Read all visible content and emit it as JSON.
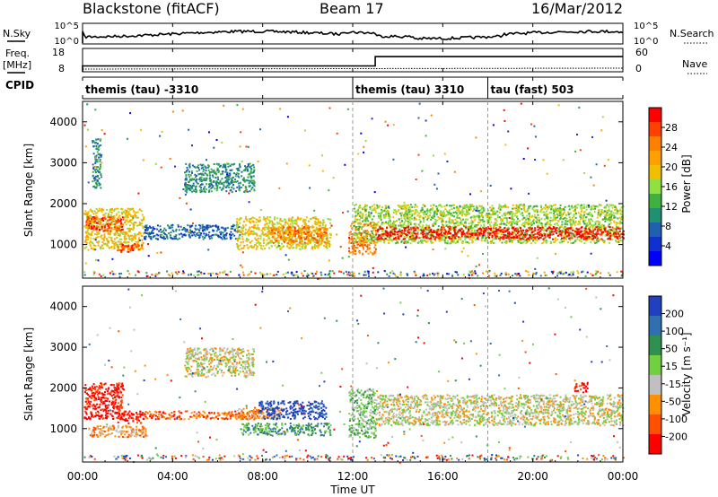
{
  "header": {
    "station": "Blackstone (fitACF)",
    "beam": "Beam 17",
    "date": "16/Mar/2012"
  },
  "side_labels": {
    "nsky": "N.Sky",
    "freq": "Freq.",
    "freq_unit": "[MHz]",
    "cpid": "CPID",
    "nsearch": "N.Search",
    "nave": "Nave"
  },
  "cpid_segments": [
    {
      "label": "themis (tau) -3310",
      "start_hr": 0
    },
    {
      "label": "themis (tau) 3310",
      "start_hr": 12
    },
    {
      "label": "tau (fast) 503",
      "start_hr": 18
    }
  ],
  "power_colorbar": {
    "label": "Power [dB]",
    "ticks": [
      "28",
      "24",
      "20",
      "16",
      "12",
      "8",
      "4"
    ],
    "colors": [
      "#ff0000",
      "#ff4000",
      "#ff8000",
      "#ffa000",
      "#f0c000",
      "#90e040",
      "#40b040",
      "#209070",
      "#2060b0",
      "#1030d0",
      "#0000ff"
    ]
  },
  "velocity_colorbar": {
    "label": "Velocity [m s⁻¹]",
    "ticks": [
      "200",
      "100",
      "50",
      "15",
      "-15",
      "-50",
      "-100",
      "-200"
    ],
    "colors": [
      "#2040c0",
      "#3070b0",
      "#309050",
      "#70d040",
      "#c0c0c0",
      "#ff9000",
      "#ff5000",
      "#ff0000"
    ]
  },
  "chart_data": {
    "type": "heatmap",
    "xlabel": "Time UT",
    "ylabel": "Slant Range [km]",
    "x_ticks": [
      "00:00",
      "04:00",
      "08:00",
      "12:00",
      "16:00",
      "20:00",
      "00:00"
    ],
    "y_ticks": [
      1000,
      2000,
      3000,
      4000
    ],
    "x_range_hr": [
      0,
      24
    ],
    "y_range_km": [
      180,
      4500
    ],
    "nsky_axis": [
      "10^5",
      "10^0"
    ],
    "nsearch_axis": [
      "10^5",
      "10^0"
    ],
    "freq_axis": [
      18,
      8
    ],
    "nave_axis": [
      60,
      0
    ],
    "freq_mhz": [
      {
        "start_hr": 0,
        "value": 10.5
      },
      {
        "start_hr": 13,
        "value": 14.5
      }
    ],
    "panels": [
      {
        "name": "power",
        "regions": [
          {
            "t0": 0.05,
            "t1": 2.7,
            "r0": 900,
            "r1": 1900,
            "level": 6
          },
          {
            "t0": 0.1,
            "t1": 1.8,
            "r0": 1350,
            "r1": 1700,
            "level": 9
          },
          {
            "t0": 1.5,
            "t1": 2.6,
            "r0": 830,
            "r1": 1050,
            "level": 9
          },
          {
            "t0": 0.4,
            "t1": 0.8,
            "r0": 2400,
            "r1": 3600,
            "level": 3
          },
          {
            "t0": 2.7,
            "t1": 7.0,
            "r0": 1150,
            "r1": 1500,
            "level": 2
          },
          {
            "t0": 4.5,
            "t1": 7.6,
            "r0": 2300,
            "r1": 3000,
            "level": 3
          },
          {
            "t0": 6.8,
            "t1": 11.0,
            "r0": 900,
            "r1": 1700,
            "level": 6
          },
          {
            "t0": 8.3,
            "t1": 10.8,
            "r0": 1050,
            "r1": 1450,
            "level": 8
          },
          {
            "t0": 11.8,
            "t1": 13.0,
            "r0": 780,
            "r1": 1550,
            "level": 8
          },
          {
            "t0": 12.0,
            "t1": 24.0,
            "r0": 1050,
            "r1": 2000,
            "level": 5
          },
          {
            "t0": 13.0,
            "t1": 24.0,
            "r0": 1150,
            "r1": 1450,
            "level": 10
          }
        ]
      },
      {
        "name": "velocity",
        "regions": [
          {
            "t0": 0.05,
            "t1": 1.8,
            "r0": 1250,
            "r1": 2150,
            "level": 7
          },
          {
            "t0": 1.5,
            "t1": 2.7,
            "r0": 1150,
            "r1": 1450,
            "level": 7
          },
          {
            "t0": 0.2,
            "t1": 2.8,
            "r0": 800,
            "r1": 1100,
            "level": 5
          },
          {
            "t0": 2.7,
            "t1": 7.8,
            "r0": 1250,
            "r1": 1450,
            "level": 6
          },
          {
            "t0": 4.5,
            "t1": 7.6,
            "r0": 2300,
            "r1": 3000,
            "level": 4
          },
          {
            "t0": 6.8,
            "t1": 8.8,
            "r0": 1250,
            "r1": 1550,
            "level": 5
          },
          {
            "t0": 7.8,
            "t1": 10.8,
            "r0": 1250,
            "r1": 1700,
            "level": 0
          },
          {
            "t0": 7.0,
            "t1": 11.0,
            "r0": 850,
            "r1": 1150,
            "level": 2
          },
          {
            "t0": 11.8,
            "t1": 13.0,
            "r0": 800,
            "r1": 2000,
            "level": 3
          },
          {
            "t0": 13.0,
            "t1": 24.0,
            "r0": 1100,
            "r1": 1850,
            "level": 4
          },
          {
            "t0": 21.8,
            "t1": 22.4,
            "r0": 1900,
            "r1": 2150,
            "level": 7
          }
        ]
      }
    ]
  }
}
